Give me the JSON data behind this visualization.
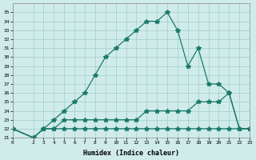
{
  "title": "",
  "xlabel": "Humidex (Indice chaleur)",
  "background_color": "#d0ecea",
  "grid_color": "#a0ccc8",
  "line_color": "#1a7a6a",
  "ylim": [
    21,
    36
  ],
  "xlim": [
    0,
    23
  ],
  "yticks": [
    21,
    22,
    23,
    24,
    25,
    26,
    27,
    28,
    29,
    30,
    31,
    32,
    33,
    34,
    35
  ],
  "xticks": [
    0,
    2,
    3,
    4,
    5,
    6,
    7,
    8,
    9,
    10,
    11,
    12,
    13,
    14,
    15,
    16,
    17,
    18,
    19,
    20,
    21,
    22,
    23
  ],
  "lines": [
    {
      "x": [
        0,
        2,
        3,
        4,
        5,
        6,
        7,
        8,
        9,
        10,
        11,
        12,
        13,
        14,
        15,
        16,
        17,
        18,
        19,
        20,
        21,
        22,
        23
      ],
      "y": [
        22,
        21,
        22,
        23,
        24,
        25,
        26,
        28,
        30,
        31,
        32,
        33,
        34,
        34,
        35,
        33,
        29,
        31,
        27,
        27,
        26,
        22,
        22
      ]
    },
    {
      "x": [
        0,
        2,
        3,
        4,
        5,
        6,
        7,
        8,
        9,
        10,
        11,
        12,
        13,
        14,
        15,
        16,
        17,
        18,
        19,
        20,
        21,
        22,
        23
      ],
      "y": [
        22,
        21,
        22,
        22,
        23,
        23,
        23,
        23,
        23,
        23,
        23,
        23,
        24,
        24,
        24,
        24,
        24,
        25,
        25,
        25,
        26,
        22,
        22
      ]
    },
    {
      "x": [
        0,
        2,
        3,
        4,
        5,
        6,
        7,
        8,
        9,
        10,
        11,
        12,
        13,
        14,
        15,
        16,
        17,
        18,
        19,
        20,
        21,
        22,
        23
      ],
      "y": [
        22,
        21,
        22,
        22,
        22,
        22,
        22,
        22,
        22,
        22,
        22,
        22,
        22,
        22,
        22,
        22,
        22,
        22,
        22,
        22,
        22,
        22,
        22
      ]
    }
  ]
}
